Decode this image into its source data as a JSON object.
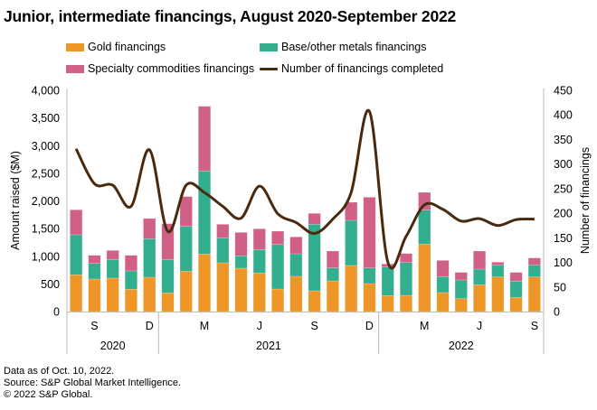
{
  "title": "Junior, intermediate financings, August 2020-September 2022",
  "legend": [
    {
      "label": "Gold financings",
      "series": "gold",
      "kind": "bar"
    },
    {
      "label": "Base/other metals financings",
      "series": "base",
      "kind": "bar"
    },
    {
      "label": "Specialty commodities financings",
      "series": "specialty",
      "kind": "bar"
    },
    {
      "label": "Number of financings completed",
      "series": "count",
      "kind": "line"
    }
  ],
  "colors": {
    "gold": "#EF9628",
    "base": "#33AE8E",
    "specialty": "#D06085",
    "count": "#4A2A0F",
    "axis": "#BDBDBD"
  },
  "footer": {
    "line1": "Data as of Oct. 10, 2022.",
    "line2": "Source: S&P Global Market Intelligence.",
    "line3": "© 2022 S&P Global."
  },
  "chart_data": {
    "type": "bar",
    "stacked": true,
    "title": "Junior, intermediate financings, August 2020-September 2022",
    "xlabel": "",
    "ylabel": "Amount raised ($M)",
    "y2label": "Number of financings",
    "ylim": [
      0,
      4000
    ],
    "yticks": [
      "0",
      "500",
      "1,000",
      "1,500",
      "2,000",
      "2,500",
      "3,000",
      "3,500",
      "4,000"
    ],
    "ytick_values": [
      0,
      500,
      1000,
      1500,
      2000,
      2500,
      3000,
      3500,
      4000
    ],
    "y2lim": [
      0,
      450
    ],
    "y2ticks": [
      "0",
      "50",
      "100",
      "150",
      "200",
      "250",
      "300",
      "350",
      "400",
      "450"
    ],
    "y2tick_values": [
      0,
      50,
      100,
      150,
      200,
      250,
      300,
      350,
      400,
      450
    ],
    "grid": false,
    "legend_position": "top",
    "categories": [
      "Aug 2020",
      "Sep 2020",
      "Oct 2020",
      "Nov 2020",
      "Dec 2020",
      "Jan 2021",
      "Feb 2021",
      "Mar 2021",
      "Apr 2021",
      "May 2021",
      "Jun 2021",
      "Jul 2021",
      "Aug 2021",
      "Sep 2021",
      "Oct 2021",
      "Nov 2021",
      "Dec 2021",
      "Jan 2022",
      "Feb 2022",
      "Mar 2022",
      "Apr 2022",
      "May 2022",
      "Jun 2022",
      "Jul 2022",
      "Aug 2022",
      "Sep 2022"
    ],
    "x_tick_labels": [
      {
        "index": 1,
        "label": "S"
      },
      {
        "index": 4,
        "label": "D"
      },
      {
        "index": 7,
        "label": "M"
      },
      {
        "index": 10,
        "label": "J"
      },
      {
        "index": 13,
        "label": "S"
      },
      {
        "index": 16,
        "label": "D"
      },
      {
        "index": 19,
        "label": "M"
      },
      {
        "index": 22,
        "label": "J"
      },
      {
        "index": 25,
        "label": "S"
      }
    ],
    "year_groups": [
      {
        "label": "2020",
        "start": 0,
        "end": 4
      },
      {
        "label": "2021",
        "start": 5,
        "end": 16
      },
      {
        "label": "2022",
        "start": 17,
        "end": 25
      }
    ],
    "series": [
      {
        "name": "Gold financings",
        "key": "gold",
        "axis": "left",
        "type": "bar",
        "values": [
          665,
          588,
          604,
          403,
          620,
          338,
          729,
          1039,
          882,
          784,
          697,
          408,
          637,
          376,
          555,
          833,
          506,
          289,
          294,
          1219,
          343,
          234,
          484,
          626,
          255,
          626
        ]
      },
      {
        "name": "Base/other metals financings",
        "key": "base",
        "axis": "left",
        "type": "bar",
        "values": [
          723,
          282,
          338,
          332,
          697,
          604,
          811,
          1503,
          451,
          222,
          424,
          806,
          408,
          1202,
          234,
          816,
          283,
          516,
          593,
          615,
          289,
          337,
          283,
          212,
          295,
          218
        ]
      },
      {
        "name": "Specialty commodities financings",
        "key": "specialty",
        "axis": "left",
        "type": "bar",
        "values": [
          452,
          147,
          163,
          282,
          365,
          647,
          539,
          1169,
          245,
          425,
          375,
          239,
          305,
          197,
          305,
          327,
          1279,
          55,
          163,
          321,
          293,
          137,
          327,
          55,
          158,
          125
        ]
      },
      {
        "name": "Number of financings completed",
        "key": "count",
        "axis": "right",
        "type": "line",
        "values": [
          331,
          260,
          257,
          214,
          329,
          163,
          257,
          242,
          214,
          190,
          255,
          199,
          181,
          159,
          188,
          242,
          407,
          101,
          153,
          217,
          208,
          184,
          189,
          175,
          187,
          188
        ]
      }
    ]
  }
}
